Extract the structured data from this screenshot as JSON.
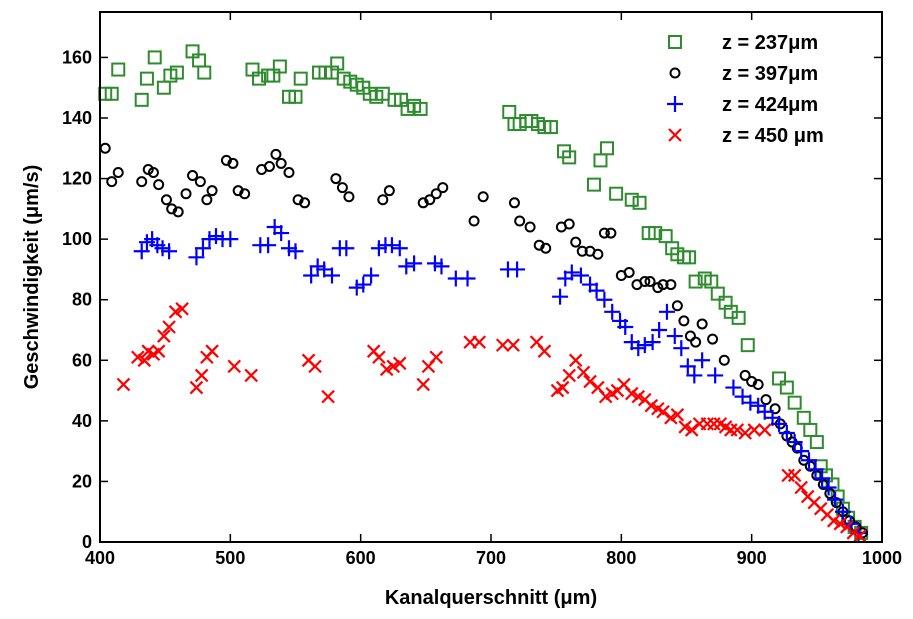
{
  "chart_data": {
    "type": "scatter",
    "title": "",
    "xlabel": "Kanalquerschnitt (μm)",
    "ylabel": "Geschwindigkeit (μm/s)",
    "xlim": [
      400,
      1000
    ],
    "ylim": [
      0,
      175
    ],
    "xticks": [
      "400",
      "500",
      "600",
      "700",
      "800",
      "900",
      "1000"
    ],
    "yticks": [
      "0",
      "20",
      "40",
      "60",
      "80",
      "100",
      "120",
      "140",
      "160"
    ],
    "grid": false,
    "legend_position": "top-right",
    "series": [
      {
        "name": "z = 237μm",
        "marker": "square",
        "color": "#2e8b2e",
        "points": [
          [
            404,
            148
          ],
          [
            409,
            148
          ],
          [
            414,
            156
          ],
          [
            432,
            146
          ],
          [
            436,
            153
          ],
          [
            442,
            160
          ],
          [
            449,
            150
          ],
          [
            454,
            154
          ],
          [
            459,
            155
          ],
          [
            471,
            162
          ],
          [
            476,
            159
          ],
          [
            480,
            155
          ],
          [
            517,
            156
          ],
          [
            522,
            153
          ],
          [
            529,
            154
          ],
          [
            533,
            154
          ],
          [
            538,
            157
          ],
          [
            545,
            147
          ],
          [
            550,
            147
          ],
          [
            554,
            153
          ],
          [
            568,
            155
          ],
          [
            573,
            155
          ],
          [
            578,
            155
          ],
          [
            582,
            158
          ],
          [
            587,
            153
          ],
          [
            592,
            152
          ],
          [
            597,
            151
          ],
          [
            602,
            150
          ],
          [
            607,
            148
          ],
          [
            612,
            147
          ],
          [
            617,
            148
          ],
          [
            626,
            146
          ],
          [
            631,
            146
          ],
          [
            636,
            143
          ],
          [
            641,
            144
          ],
          [
            646,
            143
          ],
          [
            714,
            142
          ],
          [
            718,
            138
          ],
          [
            722,
            138
          ],
          [
            727,
            139
          ],
          [
            731,
            139
          ],
          [
            736,
            138
          ],
          [
            741,
            137
          ],
          [
            746,
            137
          ],
          [
            756,
            129
          ],
          [
            760,
            127
          ],
          [
            784,
            126
          ],
          [
            789,
            130
          ],
          [
            779,
            118
          ],
          [
            796,
            115
          ],
          [
            808,
            113
          ],
          [
            814,
            112
          ],
          [
            821,
            102
          ],
          [
            826,
            102
          ],
          [
            834,
            101
          ],
          [
            839,
            97
          ],
          [
            843,
            95
          ],
          [
            848,
            94
          ],
          [
            852,
            94
          ],
          [
            857,
            86
          ],
          [
            864,
            87
          ],
          [
            869,
            86
          ],
          [
            874,
            82
          ],
          [
            880,
            79
          ],
          [
            884,
            76
          ],
          [
            890,
            74
          ],
          [
            897,
            65
          ],
          [
            921,
            54
          ],
          [
            927,
            51
          ],
          [
            933,
            46
          ],
          [
            940,
            41
          ],
          [
            945,
            37
          ],
          [
            950,
            33
          ],
          [
            953,
            25
          ],
          [
            957,
            22
          ],
          [
            962,
            19
          ],
          [
            966,
            15
          ],
          [
            970,
            11
          ],
          [
            974,
            8
          ],
          [
            979,
            5
          ],
          [
            984,
            3
          ]
        ]
      },
      {
        "name": "z = 397μm",
        "marker": "circle",
        "color": "#000000",
        "points": [
          [
            404,
            130
          ],
          [
            409,
            119
          ],
          [
            414,
            122
          ],
          [
            432,
            119
          ],
          [
            437,
            123
          ],
          [
            441,
            122
          ],
          [
            445,
            118
          ],
          [
            451,
            113
          ],
          [
            455,
            110
          ],
          [
            460,
            109
          ],
          [
            466,
            115
          ],
          [
            471,
            121
          ],
          [
            477,
            119
          ],
          [
            482,
            113
          ],
          [
            486,
            116
          ],
          [
            497,
            126
          ],
          [
            502,
            125
          ],
          [
            506,
            116
          ],
          [
            511,
            115
          ],
          [
            524,
            123
          ],
          [
            530,
            124
          ],
          [
            535,
            128
          ],
          [
            539,
            125
          ],
          [
            545,
            122
          ],
          [
            552,
            113
          ],
          [
            557,
            112
          ],
          [
            581,
            120
          ],
          [
            586,
            117
          ],
          [
            591,
            114
          ],
          [
            617,
            113
          ],
          [
            622,
            116
          ],
          [
            648,
            112
          ],
          [
            653,
            113
          ],
          [
            658,
            115
          ],
          [
            663,
            117
          ],
          [
            687,
            106
          ],
          [
            694,
            114
          ],
          [
            718,
            112
          ],
          [
            722,
            106
          ],
          [
            730,
            104
          ],
          [
            737,
            98
          ],
          [
            742,
            97
          ],
          [
            754,
            104
          ],
          [
            760,
            105
          ],
          [
            765,
            99
          ],
          [
            770,
            96
          ],
          [
            776,
            96
          ],
          [
            782,
            95
          ],
          [
            787,
            102
          ],
          [
            792,
            102
          ],
          [
            800,
            88
          ],
          [
            806,
            89
          ],
          [
            812,
            85
          ],
          [
            818,
            86
          ],
          [
            822,
            86
          ],
          [
            828,
            84
          ],
          [
            832,
            85
          ],
          [
            838,
            85
          ],
          [
            843,
            78
          ],
          [
            848,
            73
          ],
          [
            853,
            68
          ],
          [
            857,
            66
          ],
          [
            862,
            72
          ],
          [
            870,
            67
          ],
          [
            879,
            60
          ],
          [
            895,
            55
          ],
          [
            900,
            53
          ],
          [
            905,
            52
          ],
          [
            911,
            47
          ],
          [
            918,
            44
          ],
          [
            922,
            39
          ],
          [
            927,
            35
          ],
          [
            931,
            33
          ],
          [
            935,
            31
          ],
          [
            940,
            27
          ],
          [
            945,
            25
          ],
          [
            950,
            22
          ],
          [
            955,
            19
          ],
          [
            960,
            16
          ],
          [
            965,
            13
          ],
          [
            970,
            10
          ],
          [
            975,
            7
          ],
          [
            980,
            5
          ],
          [
            985,
            3
          ]
        ]
      },
      {
        "name": "z = 424μm",
        "marker": "plus",
        "color": "#0000ff",
        "points": [
          [
            432,
            96
          ],
          [
            436,
            99
          ],
          [
            440,
            100
          ],
          [
            444,
            98
          ],
          [
            448,
            97
          ],
          [
            453,
            96
          ],
          [
            474,
            94
          ],
          [
            479,
            97
          ],
          [
            484,
            100
          ],
          [
            489,
            101
          ],
          [
            494,
            100
          ],
          [
            500,
            100
          ],
          [
            523,
            98
          ],
          [
            529,
            98
          ],
          [
            534,
            104
          ],
          [
            539,
            102
          ],
          [
            545,
            97
          ],
          [
            550,
            96
          ],
          [
            562,
            88
          ],
          [
            567,
            91
          ],
          [
            572,
            90
          ],
          [
            578,
            88
          ],
          [
            584,
            97
          ],
          [
            589,
            97
          ],
          [
            597,
            84
          ],
          [
            602,
            85
          ],
          [
            608,
            88
          ],
          [
            614,
            97
          ],
          [
            619,
            98
          ],
          [
            624,
            98
          ],
          [
            630,
            97
          ],
          [
            635,
            91
          ],
          [
            641,
            92
          ],
          [
            657,
            92
          ],
          [
            662,
            91
          ],
          [
            673,
            87
          ],
          [
            682,
            87
          ],
          [
            713,
            90
          ],
          [
            720,
            90
          ],
          [
            753,
            81
          ],
          [
            757,
            87
          ],
          [
            762,
            89
          ],
          [
            769,
            88
          ],
          [
            776,
            85
          ],
          [
            781,
            83
          ],
          [
            787,
            80
          ],
          [
            793,
            76
          ],
          [
            799,
            73
          ],
          [
            803,
            71
          ],
          [
            808,
            66
          ],
          [
            813,
            64
          ],
          [
            818,
            65
          ],
          [
            824,
            66
          ],
          [
            829,
            70
          ],
          [
            835,
            76
          ],
          [
            841,
            68
          ],
          [
            846,
            64
          ],
          [
            851,
            58
          ],
          [
            856,
            55
          ],
          [
            862,
            60
          ],
          [
            872,
            55
          ],
          [
            886,
            51
          ],
          [
            893,
            48
          ],
          [
            899,
            46
          ],
          [
            905,
            45
          ],
          [
            910,
            43
          ],
          [
            916,
            41
          ],
          [
            921,
            39
          ],
          [
            927,
            36
          ],
          [
            933,
            33
          ],
          [
            938,
            30
          ],
          [
            944,
            27
          ],
          [
            949,
            24
          ],
          [
            954,
            21
          ],
          [
            959,
            18
          ],
          [
            964,
            14
          ],
          [
            970,
            10
          ],
          [
            976,
            6
          ],
          [
            982,
            3
          ]
        ]
      },
      {
        "name": "z = 450 μm",
        "marker": "x",
        "color": "#ff0000",
        "points": [
          [
            418,
            52
          ],
          [
            429,
            61
          ],
          [
            434,
            60
          ],
          [
            437,
            63
          ],
          [
            441,
            62
          ],
          [
            445,
            63
          ],
          [
            449,
            68
          ],
          [
            453,
            71
          ],
          [
            458,
            76
          ],
          [
            463,
            77
          ],
          [
            474,
            51
          ],
          [
            478,
            55
          ],
          [
            482,
            61
          ],
          [
            486,
            63
          ],
          [
            503,
            58
          ],
          [
            516,
            55
          ],
          [
            560,
            60
          ],
          [
            565,
            58
          ],
          [
            575,
            48
          ],
          [
            610,
            63
          ],
          [
            614,
            61
          ],
          [
            620,
            57
          ],
          [
            625,
            58
          ],
          [
            630,
            59
          ],
          [
            648,
            52
          ],
          [
            652,
            58
          ],
          [
            658,
            61
          ],
          [
            684,
            66
          ],
          [
            691,
            66
          ],
          [
            709,
            65
          ],
          [
            717,
            65
          ],
          [
            735,
            66
          ],
          [
            741,
            63
          ],
          [
            751,
            50
          ],
          [
            755,
            51
          ],
          [
            760,
            55
          ],
          [
            765,
            60
          ],
          [
            771,
            56
          ],
          [
            776,
            53
          ],
          [
            782,
            51
          ],
          [
            788,
            48
          ],
          [
            793,
            49
          ],
          [
            797,
            50
          ],
          [
            802,
            52
          ],
          [
            808,
            49
          ],
          [
            813,
            48
          ],
          [
            818,
            47
          ],
          [
            823,
            45
          ],
          [
            828,
            44
          ],
          [
            832,
            43
          ],
          [
            838,
            41
          ],
          [
            843,
            42
          ],
          [
            849,
            38
          ],
          [
            854,
            37
          ],
          [
            860,
            39
          ],
          [
            866,
            39
          ],
          [
            871,
            39
          ],
          [
            876,
            39
          ],
          [
            880,
            38
          ],
          [
            884,
            37
          ],
          [
            889,
            37
          ],
          [
            895,
            36
          ],
          [
            902,
            37
          ],
          [
            910,
            37
          ],
          [
            928,
            22
          ],
          [
            933,
            22
          ],
          [
            938,
            18
          ],
          [
            943,
            15
          ],
          [
            948,
            13
          ],
          [
            953,
            11
          ],
          [
            958,
            9
          ],
          [
            963,
            7
          ],
          [
            968,
            6
          ],
          [
            973,
            5
          ],
          [
            978,
            3
          ],
          [
            983,
            2
          ]
        ]
      }
    ]
  }
}
